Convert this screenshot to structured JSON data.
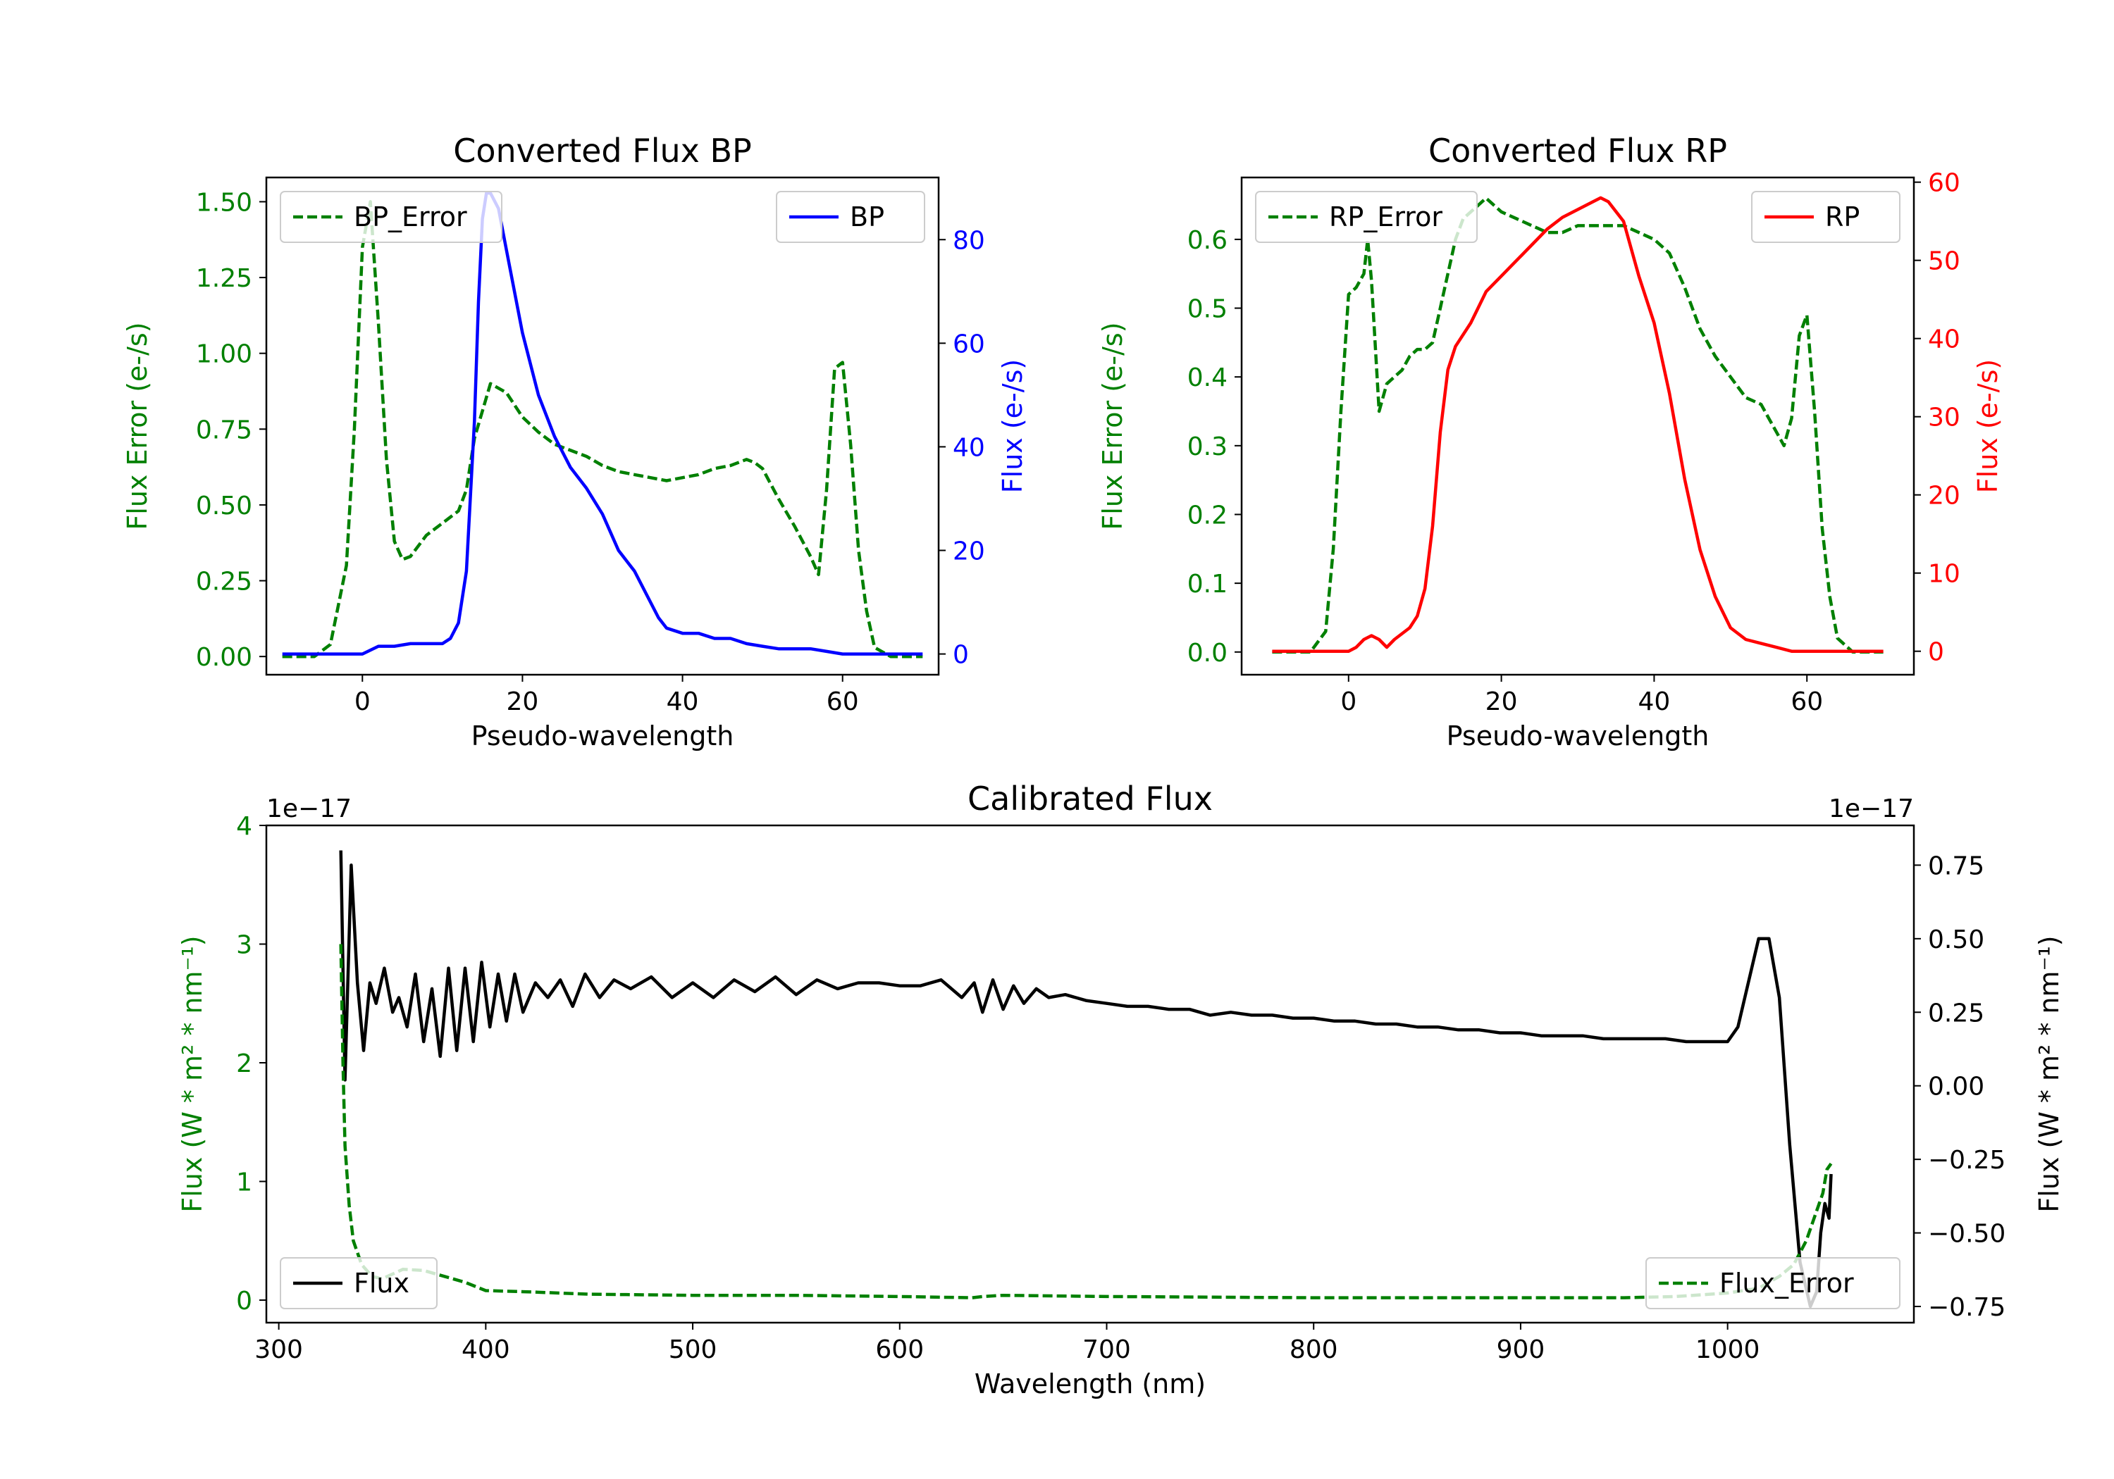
{
  "chart_data": [
    {
      "type": "line",
      "title": "Converted Flux BP",
      "xlabel": "Pseudo-wavelength",
      "ylabel_left": "Flux Error (e-/s)",
      "ylabel_right": "Flux (e-/s)",
      "xlim": [
        -12,
        72
      ],
      "ylim_left": [
        -0.06,
        1.58
      ],
      "ylim_right": [
        -4,
        92
      ],
      "xticks": [
        0,
        20,
        40,
        60
      ],
      "yticks_left": [
        0.0,
        0.25,
        0.5,
        0.75,
        1.0,
        1.25,
        1.5
      ],
      "ytick_labels_left": [
        "0.00",
        "0.25",
        "0.50",
        "0.75",
        "1.00",
        "1.25",
        "1.50"
      ],
      "yticks_right": [
        0,
        20,
        40,
        60,
        80
      ],
      "legend_left_label": "BP_Error",
      "legend_right_label": "BP",
      "colors": {
        "left_axis": "#008000",
        "right_axis": "#0000ff",
        "error": "#008000",
        "flux": "#0000ff"
      },
      "series": [
        {
          "name": "BP_Error",
          "axis": "left",
          "style": "dashed",
          "color": "#008000",
          "x": [
            -10,
            -6,
            -4,
            -2,
            -1,
            0,
            1,
            2,
            3,
            4,
            5,
            6,
            8,
            10,
            12,
            13,
            14,
            16,
            18,
            20,
            22,
            24,
            26,
            28,
            30,
            32,
            34,
            36,
            38,
            40,
            42,
            44,
            46,
            48,
            49,
            50,
            52,
            54,
            56,
            57,
            58,
            59,
            60,
            61,
            62,
            63,
            64,
            66,
            68,
            70
          ],
          "y": [
            0.0,
            0.0,
            0.04,
            0.3,
            0.75,
            1.35,
            1.5,
            1.1,
            0.65,
            0.38,
            0.32,
            0.33,
            0.4,
            0.44,
            0.48,
            0.55,
            0.72,
            0.9,
            0.87,
            0.79,
            0.74,
            0.7,
            0.68,
            0.66,
            0.63,
            0.61,
            0.6,
            0.59,
            0.58,
            0.59,
            0.6,
            0.62,
            0.63,
            0.65,
            0.64,
            0.62,
            0.52,
            0.43,
            0.33,
            0.27,
            0.55,
            0.95,
            0.97,
            0.7,
            0.35,
            0.15,
            0.03,
            0.0,
            0.0,
            0.0
          ]
        },
        {
          "name": "BP",
          "axis": "right",
          "style": "solid",
          "color": "#0000ff",
          "x": [
            -10,
            -4,
            0,
            2,
            4,
            6,
            8,
            10,
            11,
            12,
            13,
            14,
            14.5,
            15,
            15.5,
            16,
            17,
            18,
            20,
            22,
            24,
            26,
            28,
            30,
            32,
            34,
            36,
            37,
            38,
            40,
            42,
            44,
            46,
            48,
            50,
            52,
            54,
            56,
            58,
            60,
            62,
            64,
            66,
            68,
            70
          ],
          "y": [
            0,
            0,
            0,
            1.5,
            1.5,
            2,
            2,
            2,
            3,
            6,
            16,
            45,
            68,
            84,
            89,
            89,
            86,
            78,
            62,
            50,
            42,
            36,
            32,
            27,
            20,
            16,
            10,
            7,
            5,
            4,
            4,
            3,
            3,
            2,
            1.5,
            1,
            1,
            1,
            0.5,
            0,
            0,
            0,
            0,
            0,
            0
          ]
        }
      ]
    },
    {
      "type": "line",
      "title": "Converted Flux RP",
      "xlabel": "Pseudo-wavelength",
      "ylabel_left": "Flux Error (e-/s)",
      "ylabel_right": "Flux (e-/s)",
      "xlim": [
        -14,
        74
      ],
      "ylim_left": [
        -0.033,
        0.69
      ],
      "ylim_right": [
        -3,
        60.6
      ],
      "xticks": [
        0,
        20,
        40,
        60
      ],
      "yticks_left": [
        0.0,
        0.1,
        0.2,
        0.3,
        0.4,
        0.5,
        0.6
      ],
      "ytick_labels_left": [
        "0.0",
        "0.1",
        "0.2",
        "0.3",
        "0.4",
        "0.5",
        "0.6"
      ],
      "yticks_right": [
        0,
        10,
        20,
        30,
        40,
        50,
        60
      ],
      "legend_left_label": "RP_Error",
      "legend_right_label": "RP",
      "colors": {
        "left_axis": "#008000",
        "right_axis": "#ff0000",
        "error": "#008000",
        "flux": "#ff0000"
      },
      "series": [
        {
          "name": "RP_Error",
          "axis": "left",
          "style": "dashed",
          "color": "#008000",
          "x": [
            -10,
            -5,
            -3,
            -2,
            -1,
            0,
            1,
            2,
            2.5,
            3,
            4,
            5,
            6,
            7,
            8,
            9,
            10,
            11,
            12,
            13,
            14,
            15,
            16,
            17,
            18,
            20,
            22,
            24,
            26,
            28,
            30,
            32,
            34,
            36,
            38,
            40,
            42,
            44,
            46,
            48,
            50,
            52,
            54,
            55,
            56,
            57,
            58,
            59,
            60,
            61,
            62,
            63,
            64,
            66,
            68,
            70
          ],
          "y": [
            0.0,
            0.0,
            0.03,
            0.15,
            0.35,
            0.52,
            0.53,
            0.55,
            0.6,
            0.54,
            0.35,
            0.39,
            0.4,
            0.41,
            0.43,
            0.44,
            0.44,
            0.45,
            0.5,
            0.55,
            0.6,
            0.63,
            0.64,
            0.65,
            0.66,
            0.64,
            0.63,
            0.62,
            0.61,
            0.61,
            0.62,
            0.62,
            0.62,
            0.62,
            0.61,
            0.6,
            0.58,
            0.53,
            0.47,
            0.43,
            0.4,
            0.37,
            0.36,
            0.34,
            0.32,
            0.3,
            0.34,
            0.46,
            0.49,
            0.35,
            0.18,
            0.08,
            0.02,
            0.0,
            0.0,
            0.0
          ]
        },
        {
          "name": "RP",
          "axis": "right",
          "style": "solid",
          "color": "#ff0000",
          "x": [
            -10,
            -4,
            0,
            1,
            2,
            3,
            4,
            5,
            6,
            8,
            9,
            10,
            11,
            12,
            13,
            14,
            16,
            17,
            18,
            20,
            22,
            24,
            26,
            28,
            30,
            32,
            33,
            34,
            36,
            38,
            40,
            42,
            44,
            46,
            48,
            50,
            52,
            54,
            56,
            58,
            60,
            62,
            64,
            66,
            68,
            70
          ],
          "y": [
            0,
            0,
            0,
            0.5,
            1.5,
            2,
            1.5,
            0.5,
            1.5,
            3,
            4.5,
            8,
            16,
            28,
            36,
            39,
            42,
            44,
            46,
            48,
            50,
            52,
            54,
            55.5,
            56.5,
            57.5,
            58,
            57.5,
            55,
            48,
            42,
            33,
            22,
            13,
            7,
            3,
            1.5,
            1,
            0.5,
            0,
            0,
            0,
            0,
            0,
            0,
            0
          ]
        }
      ]
    },
    {
      "type": "line",
      "title": "Calibrated Flux",
      "xlabel": "Wavelength (nm)",
      "ylabel_left": "Flux (W * m² * nm⁻¹)",
      "ylabel_right": "Flux (W * m² * nm⁻¹)",
      "offset_left": "1e−17",
      "offset_right": "1e−17",
      "xlim": [
        294,
        1090
      ],
      "ylim_left": [
        -0.19,
        4.0
      ],
      "ylim_right": [
        -0.805,
        0.885
      ],
      "xticks": [
        300,
        400,
        500,
        600,
        700,
        800,
        900,
        1000
      ],
      "yticks_left": [
        0,
        1,
        2,
        3,
        4
      ],
      "yticks_right": [
        -0.75,
        -0.5,
        -0.25,
        0.0,
        0.25,
        0.5,
        0.75
      ],
      "ytick_labels_right": [
        "−0.75",
        "−0.50",
        "−0.25",
        "0.00",
        "0.25",
        "0.50",
        "0.75"
      ],
      "legend_left_label": "Flux",
      "legend_right_label": "Flux_Error",
      "colors": {
        "left_axis": "#008000",
        "right_axis": "#000000",
        "error": "#008000",
        "flux": "#000000"
      },
      "series": [
        {
          "name": "Flux",
          "axis": "right",
          "style": "solid",
          "color": "#000000",
          "x": [
            330,
            332,
            335,
            338,
            341,
            344,
            347,
            351,
            355,
            358,
            362,
            366,
            370,
            374,
            378,
            382,
            386,
            390,
            394,
            398,
            402,
            406,
            410,
            414,
            418,
            424,
            430,
            436,
            442,
            448,
            455,
            462,
            470,
            480,
            490,
            500,
            510,
            520,
            530,
            540,
            550,
            560,
            570,
            580,
            590,
            600,
            610,
            620,
            630,
            636,
            640,
            645,
            650,
            655,
            660,
            666,
            672,
            680,
            690,
            700,
            710,
            720,
            730,
            740,
            750,
            760,
            770,
            780,
            790,
            800,
            810,
            820,
            830,
            840,
            850,
            860,
            870,
            880,
            890,
            900,
            910,
            920,
            930,
            940,
            950,
            960,
            970,
            980,
            990,
            1000,
            1005,
            1010,
            1015,
            1020,
            1025,
            1030,
            1035,
            1040,
            1043,
            1045,
            1047,
            1049,
            1050
          ],
          "y": [
            0.8,
            0.02,
            0.75,
            0.35,
            0.12,
            0.35,
            0.28,
            0.4,
            0.25,
            0.3,
            0.2,
            0.38,
            0.15,
            0.33,
            0.1,
            0.4,
            0.12,
            0.4,
            0.15,
            0.42,
            0.2,
            0.38,
            0.22,
            0.38,
            0.25,
            0.35,
            0.3,
            0.36,
            0.27,
            0.38,
            0.3,
            0.36,
            0.33,
            0.37,
            0.3,
            0.35,
            0.3,
            0.36,
            0.32,
            0.37,
            0.31,
            0.36,
            0.33,
            0.35,
            0.35,
            0.34,
            0.34,
            0.36,
            0.3,
            0.35,
            0.25,
            0.36,
            0.26,
            0.34,
            0.28,
            0.33,
            0.3,
            0.31,
            0.29,
            0.28,
            0.27,
            0.27,
            0.26,
            0.26,
            0.24,
            0.25,
            0.24,
            0.24,
            0.23,
            0.23,
            0.22,
            0.22,
            0.21,
            0.21,
            0.2,
            0.2,
            0.19,
            0.19,
            0.18,
            0.18,
            0.17,
            0.17,
            0.17,
            0.16,
            0.16,
            0.16,
            0.16,
            0.15,
            0.15,
            0.15,
            0.2,
            0.35,
            0.5,
            0.5,
            0.3,
            -0.2,
            -0.6,
            -0.75,
            -0.7,
            -0.5,
            -0.4,
            -0.45,
            -0.3
          ]
        },
        {
          "name": "Flux_Error",
          "axis": "left",
          "style": "dashed",
          "color": "#008000",
          "x": [
            330,
            331,
            332,
            334,
            336,
            340,
            345,
            350,
            360,
            370,
            380,
            390,
            400,
            420,
            450,
            500,
            550,
            600,
            635,
            640,
            650,
            700,
            800,
            900,
            950,
            975,
            1000,
            1015,
            1025,
            1032,
            1038,
            1042,
            1046,
            1048,
            1050
          ],
          "y": [
            3.0,
            2.0,
            1.3,
            0.8,
            0.5,
            0.3,
            0.2,
            0.18,
            0.26,
            0.25,
            0.2,
            0.15,
            0.08,
            0.07,
            0.05,
            0.04,
            0.04,
            0.03,
            0.02,
            0.03,
            0.04,
            0.03,
            0.02,
            0.02,
            0.02,
            0.03,
            0.06,
            0.1,
            0.2,
            0.3,
            0.5,
            0.7,
            0.9,
            1.1,
            1.15
          ]
        }
      ]
    }
  ]
}
